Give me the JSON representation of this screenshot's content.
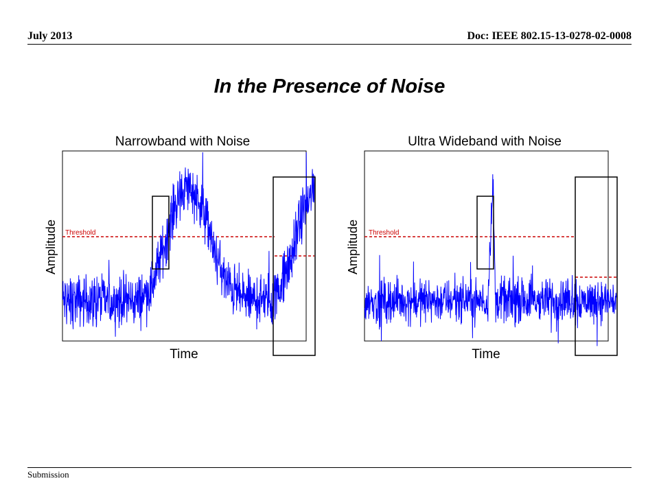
{
  "header": {
    "date": "July 2013",
    "doc": "Doc: IEEE 802.15-13-0278-02-0008"
  },
  "slide": {
    "title": "In the Presence of Noise"
  },
  "footer": {
    "label": "Submission"
  },
  "colors": {
    "signal": "#0000ff",
    "threshold": "#cc0000",
    "frame": "#000000"
  },
  "chart_data": [
    {
      "type": "line",
      "title": "Narrowband with Noise",
      "xlabel": "Time",
      "ylabel": "Amplitude",
      "grid": false,
      "threshold": {
        "label": "Threshold",
        "value": 0.5
      },
      "xlim": [
        0,
        1
      ],
      "ylim": [
        -0.35,
        1.3
      ],
      "series": [
        {
          "x": [
            0,
            0.2,
            0.3,
            0.35,
            0.4,
            0.45,
            0.5,
            0.55,
            0.6,
            0.65,
            0.7,
            0.75,
            0.8,
            0.85,
            0.9,
            0.95,
            1.0
          ],
          "y": [
            0,
            0,
            0,
            0.1,
            0.45,
            0.85,
            1.0,
            0.85,
            0.45,
            0.15,
            0.05,
            0.0,
            0.0,
            0.05,
            0.3,
            0.75,
            1.0
          ]
        }
      ]
    },
    {
      "type": "line",
      "title": "Ultra Wideband with Noise",
      "xlabel": "Time",
      "ylabel": "Amplitude",
      "grid": false,
      "threshold": {
        "label": "Threshold",
        "value": 0.5
      },
      "xlim": [
        0,
        1
      ],
      "ylim": [
        -0.35,
        1.3
      ],
      "series": [
        {
          "x": [
            0,
            0.49,
            0.5,
            0.51,
            0.52,
            1.0
          ],
          "y": [
            0,
            0,
            0.6,
            1.0,
            0.0,
            0.0
          ]
        }
      ]
    }
  ]
}
